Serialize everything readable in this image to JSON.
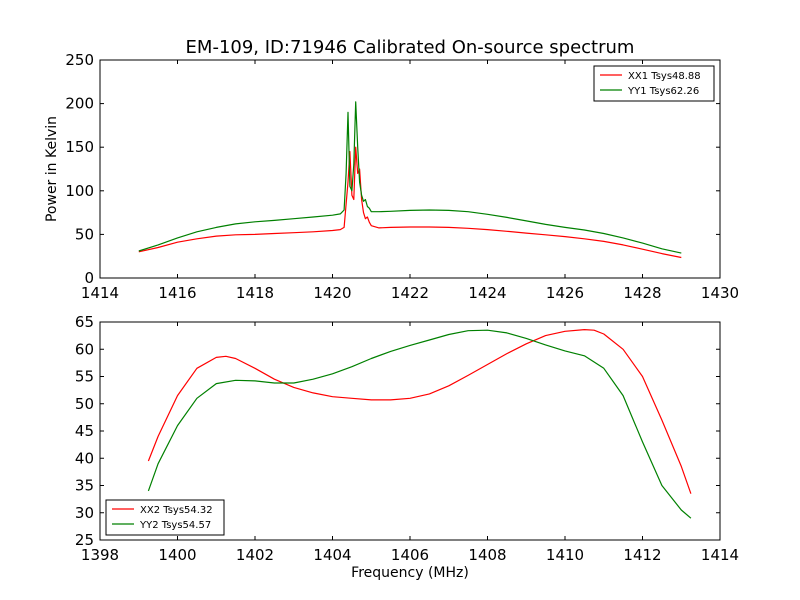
{
  "title": "EM-109, ID:71946 Calibrated On-source spectrum",
  "chart_data": [
    {
      "type": "line",
      "ylabel": "Power in Kelvin",
      "xlabel": "",
      "xlim": [
        1414,
        1430
      ],
      "ylim": [
        0,
        250
      ],
      "xticks": [
        "1414",
        "1416",
        "1418",
        "1420",
        "1422",
        "1424",
        "1426",
        "1428",
        "1430"
      ],
      "yticks": [
        "0",
        "50",
        "100",
        "150",
        "200",
        "250"
      ],
      "legend_position": "top-right",
      "series": [
        {
          "name": "XX1 Tsys48.88",
          "color": "#ff0000",
          "x": [
            1415.0,
            1415.5,
            1416.0,
            1416.5,
            1417.0,
            1417.5,
            1418.0,
            1418.5,
            1419.0,
            1419.5,
            1420.0,
            1420.2,
            1420.3,
            1420.4,
            1420.45,
            1420.5,
            1420.55,
            1420.6,
            1420.65,
            1420.7,
            1420.75,
            1420.8,
            1420.85,
            1420.9,
            1420.95,
            1421.0,
            1421.2,
            1421.5,
            1422.0,
            1422.5,
            1423.0,
            1423.5,
            1424.0,
            1424.5,
            1425.0,
            1425.5,
            1426.0,
            1426.5,
            1427.0,
            1427.5,
            1428.0,
            1428.5,
            1429.0
          ],
          "values": [
            30,
            35,
            41,
            45,
            48,
            49.5,
            50,
            51,
            52,
            53,
            54.5,
            55.5,
            58,
            110,
            145,
            95,
            90,
            150,
            120,
            125,
            90,
            75,
            68,
            70,
            64,
            60,
            57.5,
            58,
            58.5,
            58.5,
            58,
            57,
            55.5,
            53.5,
            51.5,
            49.5,
            47.5,
            45,
            42,
            38,
            33,
            28,
            23.5
          ]
        },
        {
          "name": "YY1 Tsys62.26",
          "color": "#008000",
          "x": [
            1415.0,
            1415.5,
            1416.0,
            1416.5,
            1417.0,
            1417.5,
            1418.0,
            1418.5,
            1419.0,
            1419.5,
            1420.0,
            1420.2,
            1420.3,
            1420.35,
            1420.4,
            1420.45,
            1420.5,
            1420.55,
            1420.6,
            1420.65,
            1420.7,
            1420.75,
            1420.8,
            1420.85,
            1420.9,
            1420.95,
            1421.0,
            1421.2,
            1421.5,
            1422.0,
            1422.5,
            1423.0,
            1423.5,
            1424.0,
            1424.5,
            1425.0,
            1425.5,
            1426.0,
            1426.5,
            1427.0,
            1427.5,
            1428.0,
            1428.5,
            1429.0
          ],
          "values": [
            31,
            38,
            46,
            53,
            58,
            62,
            64.5,
            66,
            68,
            70,
            72,
            73.5,
            78,
            120,
            190,
            105,
            100,
            130,
            202,
            150,
            110,
            95,
            88,
            90,
            82,
            80,
            76,
            76,
            76.5,
            77.5,
            78,
            77.5,
            76,
            73,
            69.5,
            65.5,
            61.5,
            58,
            55,
            51,
            46,
            40,
            33.5,
            28.5
          ]
        }
      ]
    },
    {
      "type": "line",
      "ylabel": "",
      "xlabel": "Frequency (MHz)",
      "xlim": [
        1398,
        1414
      ],
      "ylim": [
        25,
        65
      ],
      "xticks": [
        "1398",
        "1400",
        "1402",
        "1404",
        "1406",
        "1408",
        "1410",
        "1412",
        "1414"
      ],
      "yticks": [
        "25",
        "30",
        "35",
        "40",
        "45",
        "50",
        "55",
        "60",
        "65"
      ],
      "legend_position": "bottom-left",
      "series": [
        {
          "name": "XX2 Tsys54.32",
          "color": "#ff0000",
          "x": [
            1399.25,
            1399.5,
            1400.0,
            1400.5,
            1401.0,
            1401.25,
            1401.5,
            1402.0,
            1402.5,
            1403.0,
            1403.5,
            1404.0,
            1404.5,
            1405.0,
            1405.5,
            1406.0,
            1406.5,
            1407.0,
            1407.5,
            1408.0,
            1408.5,
            1409.0,
            1409.5,
            1410.0,
            1410.5,
            1410.75,
            1411.0,
            1411.5,
            1412.0,
            1412.5,
            1413.0,
            1413.25
          ],
          "values": [
            39.5,
            44,
            51.5,
            56.5,
            58.5,
            58.7,
            58.3,
            56.5,
            54.5,
            53,
            52,
            51.3,
            51,
            50.7,
            50.7,
            51,
            51.8,
            53.3,
            55.2,
            57.2,
            59.2,
            61,
            62.5,
            63.3,
            63.6,
            63.5,
            62.8,
            60,
            55,
            47,
            38.5,
            33.5
          ]
        },
        {
          "name": "YY2 Tsys54.57",
          "color": "#008000",
          "x": [
            1399.25,
            1399.5,
            1400.0,
            1400.5,
            1401.0,
            1401.5,
            1402.0,
            1402.5,
            1403.0,
            1403.5,
            1404.0,
            1404.5,
            1405.0,
            1405.5,
            1406.0,
            1406.5,
            1407.0,
            1407.5,
            1408.0,
            1408.5,
            1409.0,
            1409.5,
            1410.0,
            1410.5,
            1411.0,
            1411.5,
            1412.0,
            1412.5,
            1413.0,
            1413.25
          ],
          "values": [
            34,
            39,
            46,
            51,
            53.7,
            54.3,
            54.2,
            53.8,
            53.8,
            54.5,
            55.5,
            56.8,
            58.3,
            59.6,
            60.7,
            61.7,
            62.7,
            63.4,
            63.5,
            63,
            62,
            60.8,
            59.7,
            58.8,
            56.5,
            51.5,
            43,
            35,
            30.5,
            29
          ]
        }
      ]
    }
  ]
}
